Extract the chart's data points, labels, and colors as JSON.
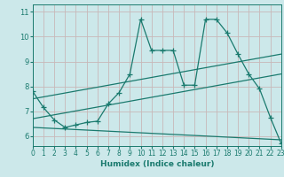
{
  "xlabel": "Humidex (Indice chaleur)",
  "background_color": "#cce8ea",
  "grid_color": "#aacccc",
  "line_color": "#1a7a6e",
  "xlim": [
    0,
    23
  ],
  "ylim": [
    5.6,
    11.3
  ],
  "yticks": [
    6,
    7,
    8,
    9,
    10,
    11
  ],
  "xticks": [
    0,
    1,
    2,
    3,
    4,
    5,
    6,
    7,
    8,
    9,
    10,
    11,
    12,
    13,
    14,
    15,
    16,
    17,
    18,
    19,
    20,
    21,
    22,
    23
  ],
  "main_x": [
    0,
    1,
    2,
    3,
    4,
    5,
    6,
    7,
    8,
    9,
    10,
    11,
    12,
    13,
    14,
    15,
    16,
    17,
    18,
    19,
    20,
    21,
    22,
    23
  ],
  "main_y": [
    7.8,
    7.15,
    6.65,
    6.35,
    6.45,
    6.55,
    6.6,
    7.3,
    7.75,
    8.5,
    10.7,
    9.45,
    9.45,
    9.45,
    8.05,
    8.05,
    10.7,
    10.7,
    10.15,
    9.3,
    8.5,
    7.9,
    6.75,
    5.7
  ],
  "trend1_x": [
    0,
    23
  ],
  "trend1_y": [
    7.5,
    9.3
  ],
  "trend2_x": [
    0,
    23
  ],
  "trend2_y": [
    6.7,
    8.5
  ],
  "trend3_x": [
    0,
    23
  ],
  "trend3_y": [
    6.35,
    5.85
  ]
}
